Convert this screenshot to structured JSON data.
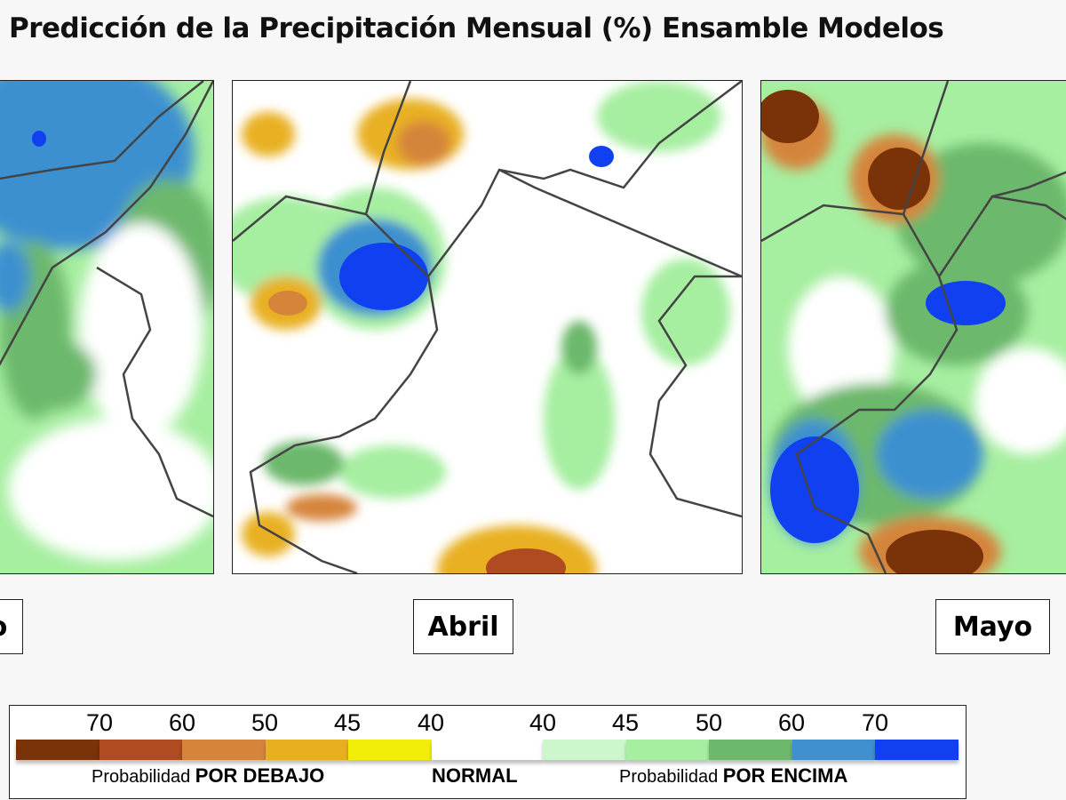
{
  "title": "Predicción de la Precipitación Mensual (%) Ensamble Modelos",
  "panels": [
    {
      "label": "o"
    },
    {
      "label": "Abril"
    },
    {
      "label": "Mayo"
    }
  ],
  "legend": {
    "below_ticks": [
      "70",
      "60",
      "50",
      "45",
      "40"
    ],
    "above_ticks": [
      "40",
      "45",
      "50",
      "60",
      "70"
    ],
    "below_colors": [
      "#7a3208",
      "#b04a20",
      "#d5843a",
      "#e8b020",
      "#f2ee08"
    ],
    "normal_color": "#ffffff",
    "above_colors": [
      "#ccf6cc",
      "#a6eea0",
      "#6cb86c",
      "#3e90d0",
      "#1040f0"
    ],
    "below_prefix": "Probabilidad",
    "below_label": "POR DEBAJO",
    "normal_label": "NORMAL",
    "above_prefix": "Probabilidad",
    "above_label": "POR ENCIMA"
  }
}
